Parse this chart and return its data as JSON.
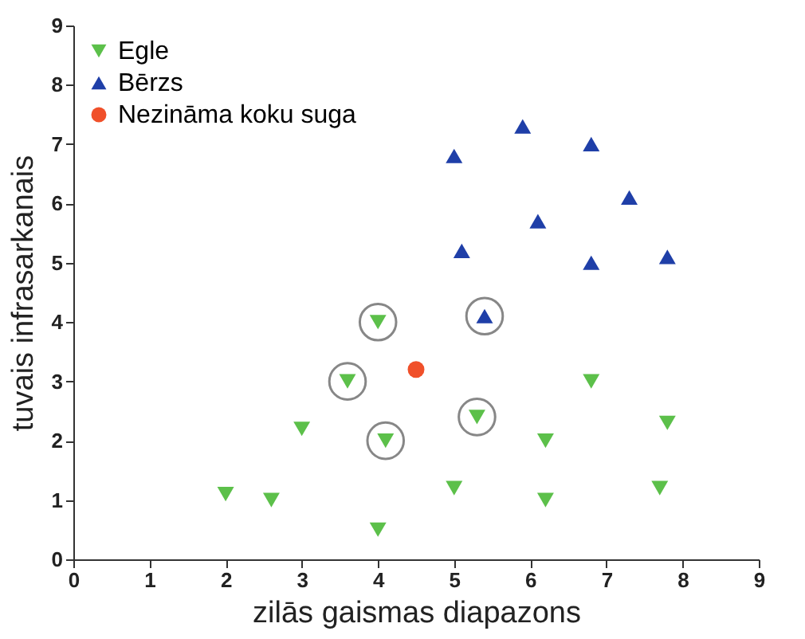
{
  "chart_data": {
    "type": "scatter",
    "xlabel": "zilās gaismas diapazons",
    "ylabel": "tuvais infrasarkanais",
    "xlim": [
      0,
      9
    ],
    "ylim": [
      0,
      9
    ],
    "xticks": [
      0,
      1,
      2,
      3,
      4,
      5,
      6,
      7,
      8,
      9
    ],
    "yticks": [
      0,
      1,
      2,
      3,
      4,
      5,
      6,
      7,
      8,
      9
    ],
    "legend": "top left",
    "grid": false,
    "series": [
      {
        "name": "Egle",
        "color": "#5cc04a",
        "marker": "triangle-down",
        "x": [
          2,
          2.6,
          3,
          3.6,
          4,
          4,
          4.1,
          5,
          5.3,
          6.2,
          6.2,
          6.8,
          7.7,
          7.8
        ],
        "values": [
          1.1,
          1.0,
          2.2,
          3.0,
          4.0,
          0.5,
          2.0,
          1.2,
          2.4,
          2.0,
          1.0,
          3.0,
          1.2,
          2.3
        ]
      },
      {
        "name": "Bērzs",
        "color": "#1f3fa8",
        "marker": "triangle",
        "x": [
          5,
          5.1,
          5.4,
          5.9,
          6.1,
          6.8,
          6.8,
          7.3,
          7.8
        ],
        "values": [
          6.8,
          5.2,
          4.1,
          7.3,
          5.7,
          7.0,
          5.0,
          6.1,
          5.1
        ]
      },
      {
        "name": "Nezināma koku suga",
        "color": "#f0502a",
        "marker": "circle",
        "x": [
          4.5
        ],
        "values": [
          3.2
        ]
      },
      {
        "color": "#555555",
        "marker": "circle",
        "x": [
          3.6,
          4,
          4.1,
          5.3,
          5.4
        ],
        "values": [
          3.0,
          4.0,
          2.0,
          2.4,
          4.1
        ]
      }
    ]
  }
}
